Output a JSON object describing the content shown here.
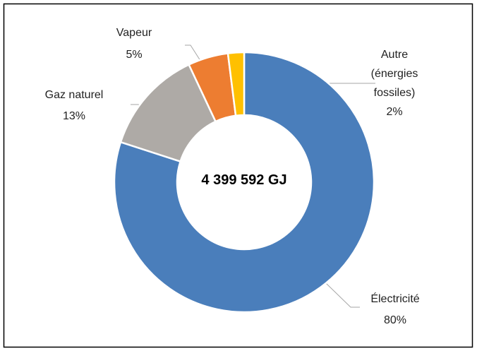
{
  "chart_data": {
    "type": "donut",
    "center_label": "4 399 592 GJ",
    "categories": [
      "Électricité",
      "Gaz naturel",
      "Vapeur",
      "Autre (énergies fossiles)"
    ],
    "values": [
      80,
      13,
      5,
      2
    ],
    "value_labels": [
      "80%",
      "13%",
      "5%",
      "2%"
    ],
    "colors": [
      "#4a7ebb",
      "#aeaaa6",
      "#ed7d31",
      "#ffc000"
    ]
  }
}
